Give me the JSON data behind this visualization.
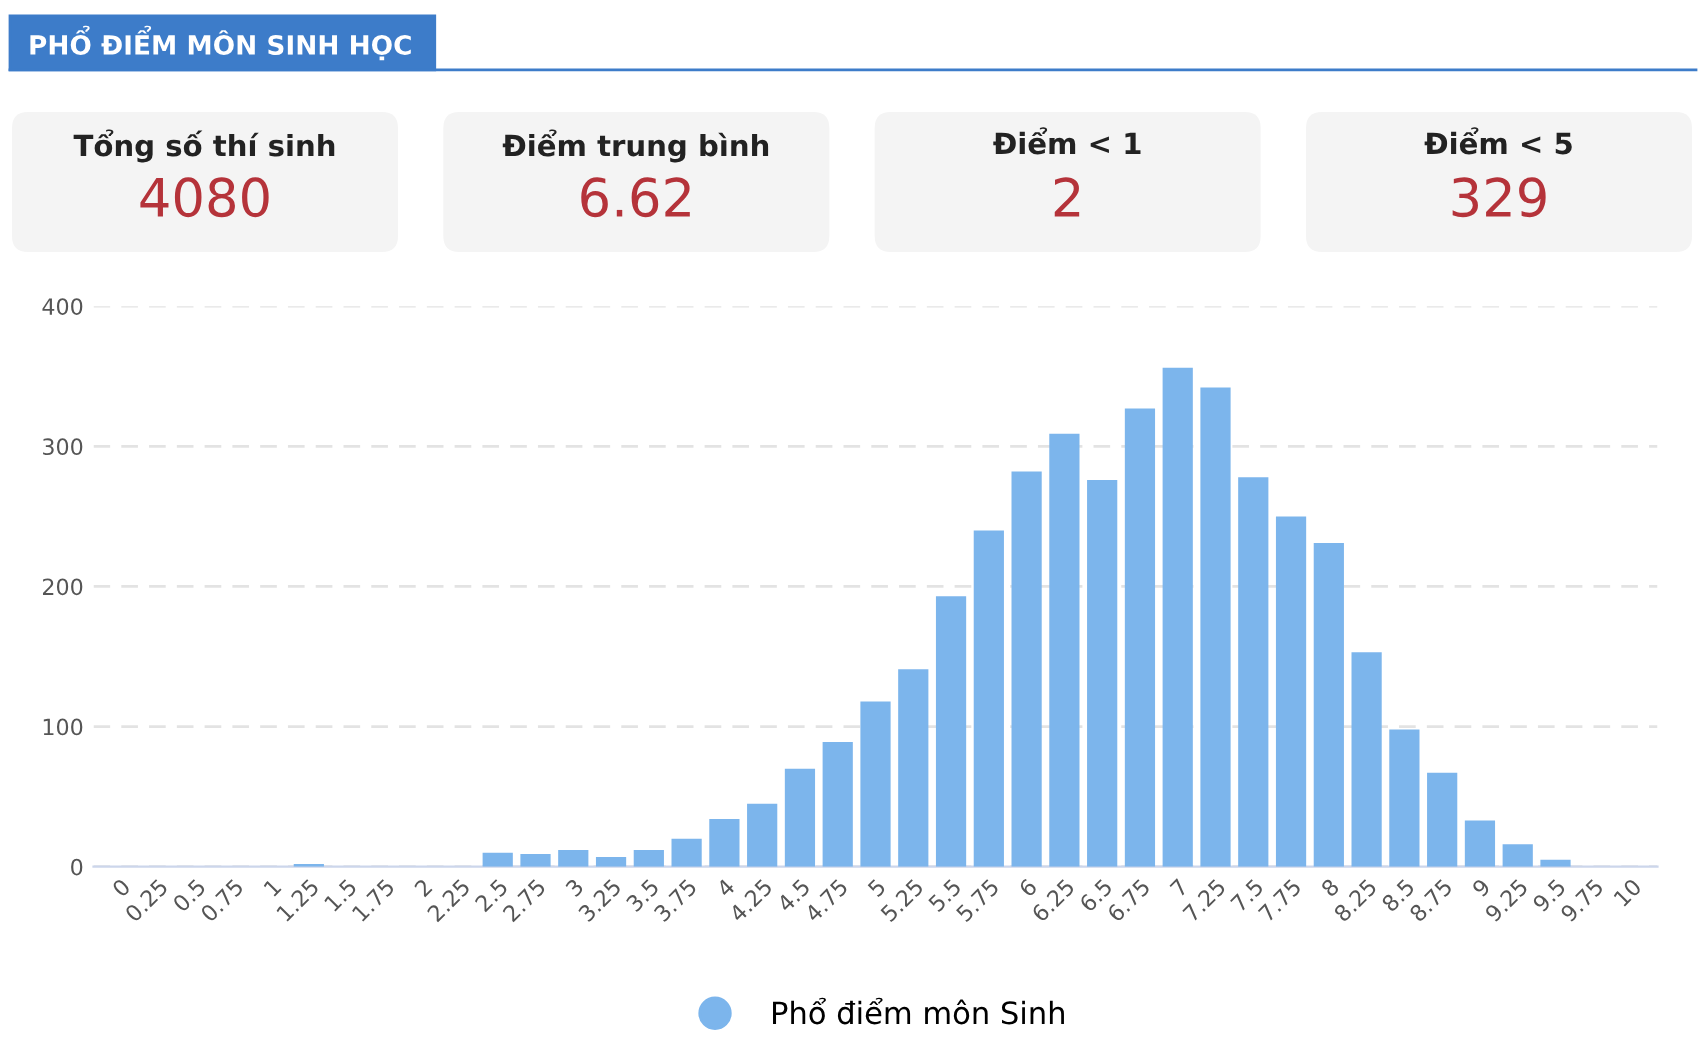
{
  "chart_data": [
    {
      "type": "other",
      "title": "PHỔ ĐIỂM MÔN SINH HỌC",
      "annotations": [
        "Tổng số thí sinh",
        "4080",
        "Điểm trung bình",
        "6.62",
        "Điểm < 1",
        "2",
        "Điểm < 5",
        "329"
      ]
    },
    {
      "type": "bar",
      "categories": [
        "0",
        "0.25",
        "0.5",
        "0.75",
        "1",
        "1.25",
        "1.5",
        "1.75",
        "2",
        "2.25",
        "2.5",
        "2.75",
        "3",
        "3.25",
        "3.5",
        "3.75",
        "4",
        "4.25",
        "4.5",
        "4.75",
        "5",
        "5.25",
        "5.5",
        "5.75",
        "6",
        "6.25",
        "6.5",
        "6.75",
        "7",
        "7.25",
        "7.5",
        "7.75",
        "8",
        "8.25",
        "8.5",
        "8.75",
        "9",
        "9.25",
        "9.5",
        "9.75",
        "10"
      ],
      "series": [
        {
          "name": "Phổ điểm môn Sinh",
          "color": "#7cb5ec",
          "values": [
            0,
            0,
            0,
            0,
            0,
            2,
            0,
            0,
            0,
            0,
            10,
            9,
            12,
            7,
            12,
            20,
            34,
            45,
            70,
            89,
            118,
            141,
            193,
            240,
            282,
            309,
            276,
            327,
            356,
            342,
            278,
            250,
            231,
            153,
            98,
            67,
            33,
            16,
            5,
            0,
            0
          ]
        }
      ],
      "ylim": [
        0,
        400
      ],
      "yticks": [
        0,
        100,
        200,
        300,
        400
      ],
      "grid": "y",
      "legend": "bottom"
    }
  ]
}
